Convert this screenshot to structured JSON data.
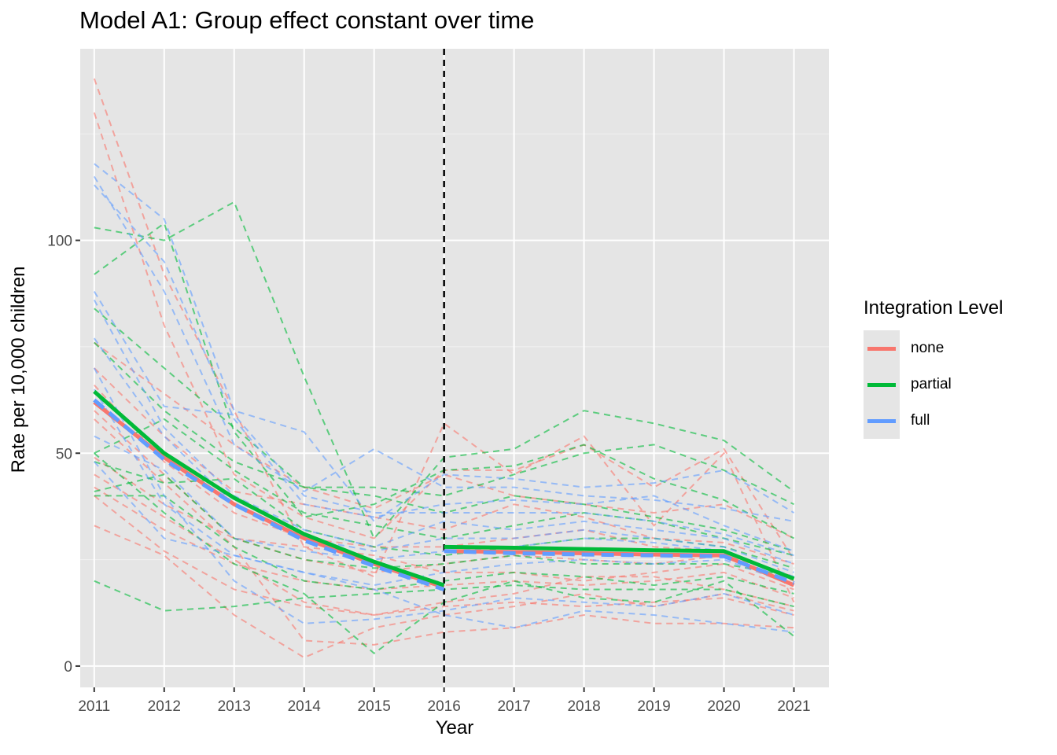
{
  "chart_data": {
    "type": "line",
    "title": "Model A1: Group effect constant over time",
    "xlabel": "Year",
    "ylabel": "Rate per 10,000 children",
    "x": [
      2011,
      2012,
      2013,
      2014,
      2015,
      2016,
      2017,
      2018,
      2019,
      2020,
      2021
    ],
    "xlim": [
      2010.8,
      2021.5
    ],
    "ylim": [
      -5,
      145
    ],
    "y_ticks": [
      0,
      50,
      100
    ],
    "grid": true,
    "legend_title": "Integration Level",
    "legend_position": "right",
    "vline": {
      "x": 2016,
      "style": "dashed",
      "color": "#000000"
    },
    "colors": {
      "none": "#f8766d",
      "partial": "#00ba38",
      "full": "#619cff"
    },
    "series": [
      {
        "name": "none",
        "color": "#f8766d",
        "pre": [
          [
            2011,
            62
          ],
          [
            2012,
            49
          ],
          [
            2013,
            38
          ],
          [
            2014,
            30
          ],
          [
            2015,
            24
          ],
          [
            2016,
            18.5
          ]
        ],
        "post": [
          [
            2016,
            27
          ],
          [
            2017,
            26.8
          ],
          [
            2018,
            26.5
          ],
          [
            2019,
            26.2
          ],
          [
            2020,
            26
          ],
          [
            2021,
            19
          ]
        ]
      },
      {
        "name": "partial",
        "color": "#00ba38",
        "pre": [
          [
            2011,
            64.5
          ],
          [
            2012,
            50
          ],
          [
            2013,
            39.5
          ],
          [
            2014,
            31
          ],
          [
            2015,
            24.5
          ],
          [
            2016,
            19
          ]
        ],
        "post": [
          [
            2016,
            28
          ],
          [
            2017,
            27.8
          ],
          [
            2018,
            27.5
          ],
          [
            2019,
            27.2
          ],
          [
            2020,
            27
          ],
          [
            2021,
            20.5
          ]
        ]
      },
      {
        "name": "full",
        "color": "#619cff",
        "pre": [
          [
            2011,
            62.5
          ],
          [
            2012,
            48.5
          ],
          [
            2013,
            38
          ],
          [
            2014,
            29.5
          ],
          [
            2015,
            23.5
          ],
          [
            2016,
            18
          ]
        ],
        "post": [
          [
            2016,
            27
          ],
          [
            2017,
            26.5
          ],
          [
            2018,
            26.2
          ],
          [
            2019,
            26
          ],
          [
            2020,
            25.8
          ],
          [
            2021,
            19.5
          ]
        ]
      }
    ],
    "individual_series": [
      {
        "group": "none",
        "values": [
          138,
          92,
          60,
          28,
          21,
          57,
          45,
          54,
          33,
          50,
          15
        ]
      },
      {
        "group": "none",
        "values": [
          130,
          80,
          45,
          35,
          30,
          46,
          46,
          52,
          42,
          51,
          25
        ]
      },
      {
        "group": "none",
        "values": [
          76,
          64,
          52,
          42,
          37,
          45,
          40,
          38,
          36,
          38,
          30
        ]
      },
      {
        "group": "none",
        "values": [
          70,
          54,
          41,
          38,
          35,
          32,
          38,
          35,
          30,
          29,
          24
        ]
      },
      {
        "group": "none",
        "values": [
          66,
          48,
          36,
          30,
          28,
          28,
          30,
          32,
          28,
          27,
          20
        ]
      },
      {
        "group": "none",
        "values": [
          60,
          45,
          30,
          25,
          22,
          24,
          26,
          25,
          24,
          26,
          21
        ]
      },
      {
        "group": "none",
        "values": [
          49,
          38,
          30,
          28,
          26,
          22,
          22,
          20,
          22,
          24,
          18
        ]
      },
      {
        "group": "none",
        "values": [
          42,
          32,
          24,
          20,
          18,
          19,
          20,
          19,
          20,
          22,
          16
        ]
      },
      {
        "group": "none",
        "values": [
          40,
          27,
          18,
          14,
          12,
          15,
          17,
          21,
          21,
          18,
          14
        ]
      },
      {
        "group": "none",
        "values": [
          33,
          26,
          12,
          2,
          9,
          12,
          14,
          17,
          14,
          17,
          13
        ]
      },
      {
        "group": "none",
        "values": [
          58,
          43,
          28,
          6,
          5,
          8,
          9,
          12,
          10,
          10,
          9
        ]
      },
      {
        "group": "none",
        "values": [
          45,
          35,
          25,
          15,
          12,
          14,
          15,
          14,
          15,
          16,
          12
        ]
      },
      {
        "group": "partial",
        "values": [
          103,
          100,
          109,
          68,
          30,
          49,
          51,
          60,
          57,
          53,
          41
        ]
      },
      {
        "group": "partial",
        "values": [
          92,
          104,
          55,
          35,
          38,
          46,
          47,
          52,
          44,
          39,
          30
        ]
      },
      {
        "group": "partial",
        "values": [
          84,
          70,
          56,
          42,
          42,
          40,
          45,
          50,
          52,
          46,
          38
        ]
      },
      {
        "group": "partial",
        "values": [
          76,
          60,
          48,
          42,
          40,
          36,
          40,
          38,
          35,
          32,
          27
        ]
      },
      {
        "group": "partial",
        "values": [
          50,
          58,
          46,
          36,
          33,
          30,
          33,
          36,
          34,
          30,
          26
        ]
      },
      {
        "group": "partial",
        "values": [
          48,
          43,
          44,
          32,
          28,
          26,
          28,
          30,
          30,
          28,
          23
        ]
      },
      {
        "group": "partial",
        "values": [
          41,
          45,
          30,
          25,
          23,
          24,
          26,
          24,
          24,
          24,
          21
        ]
      },
      {
        "group": "partial",
        "values": [
          40,
          40,
          28,
          20,
          18,
          20,
          22,
          21,
          19,
          21,
          17
        ]
      },
      {
        "group": "partial",
        "values": [
          20,
          13,
          14,
          16,
          17,
          18,
          19,
          18,
          18,
          18,
          14
        ]
      },
      {
        "group": "partial",
        "values": [
          50,
          36,
          24,
          17,
          3,
          15,
          20,
          16,
          15,
          20,
          7
        ]
      },
      {
        "group": "full",
        "values": [
          118,
          105,
          60,
          55,
          34,
          45,
          44,
          42,
          43,
          46,
          36
        ]
      },
      {
        "group": "full",
        "values": [
          115,
          88,
          52,
          41,
          51,
          42,
          42,
          40,
          39,
          37,
          34
        ]
      },
      {
        "group": "full",
        "values": [
          113,
          95,
          58,
          38,
          35,
          38,
          39,
          38,
          40,
          33,
          27
        ]
      },
      {
        "group": "full",
        "values": [
          88,
          61,
          59,
          40,
          36,
          36,
          36,
          36,
          34,
          31,
          26
        ]
      },
      {
        "group": "full",
        "values": [
          86,
          56,
          40,
          32,
          28,
          34,
          32,
          34,
          32,
          30,
          24
        ]
      },
      {
        "group": "full",
        "values": [
          77,
          54,
          38,
          30,
          27,
          30,
          30,
          32,
          30,
          28,
          22
        ]
      },
      {
        "group": "full",
        "values": [
          54,
          46,
          30,
          27,
          25,
          27,
          28,
          30,
          29,
          27,
          21
        ]
      },
      {
        "group": "full",
        "values": [
          48,
          30,
          26,
          22,
          19,
          22,
          24,
          25,
          24,
          25,
          19
        ]
      },
      {
        "group": "full",
        "values": [
          70,
          40,
          20,
          10,
          11,
          13,
          16,
          15,
          14,
          17,
          12
        ]
      },
      {
        "group": "full",
        "values": [
          65,
          38,
          26,
          22,
          18,
          12,
          9,
          13,
          12,
          10,
          8
        ]
      }
    ]
  }
}
